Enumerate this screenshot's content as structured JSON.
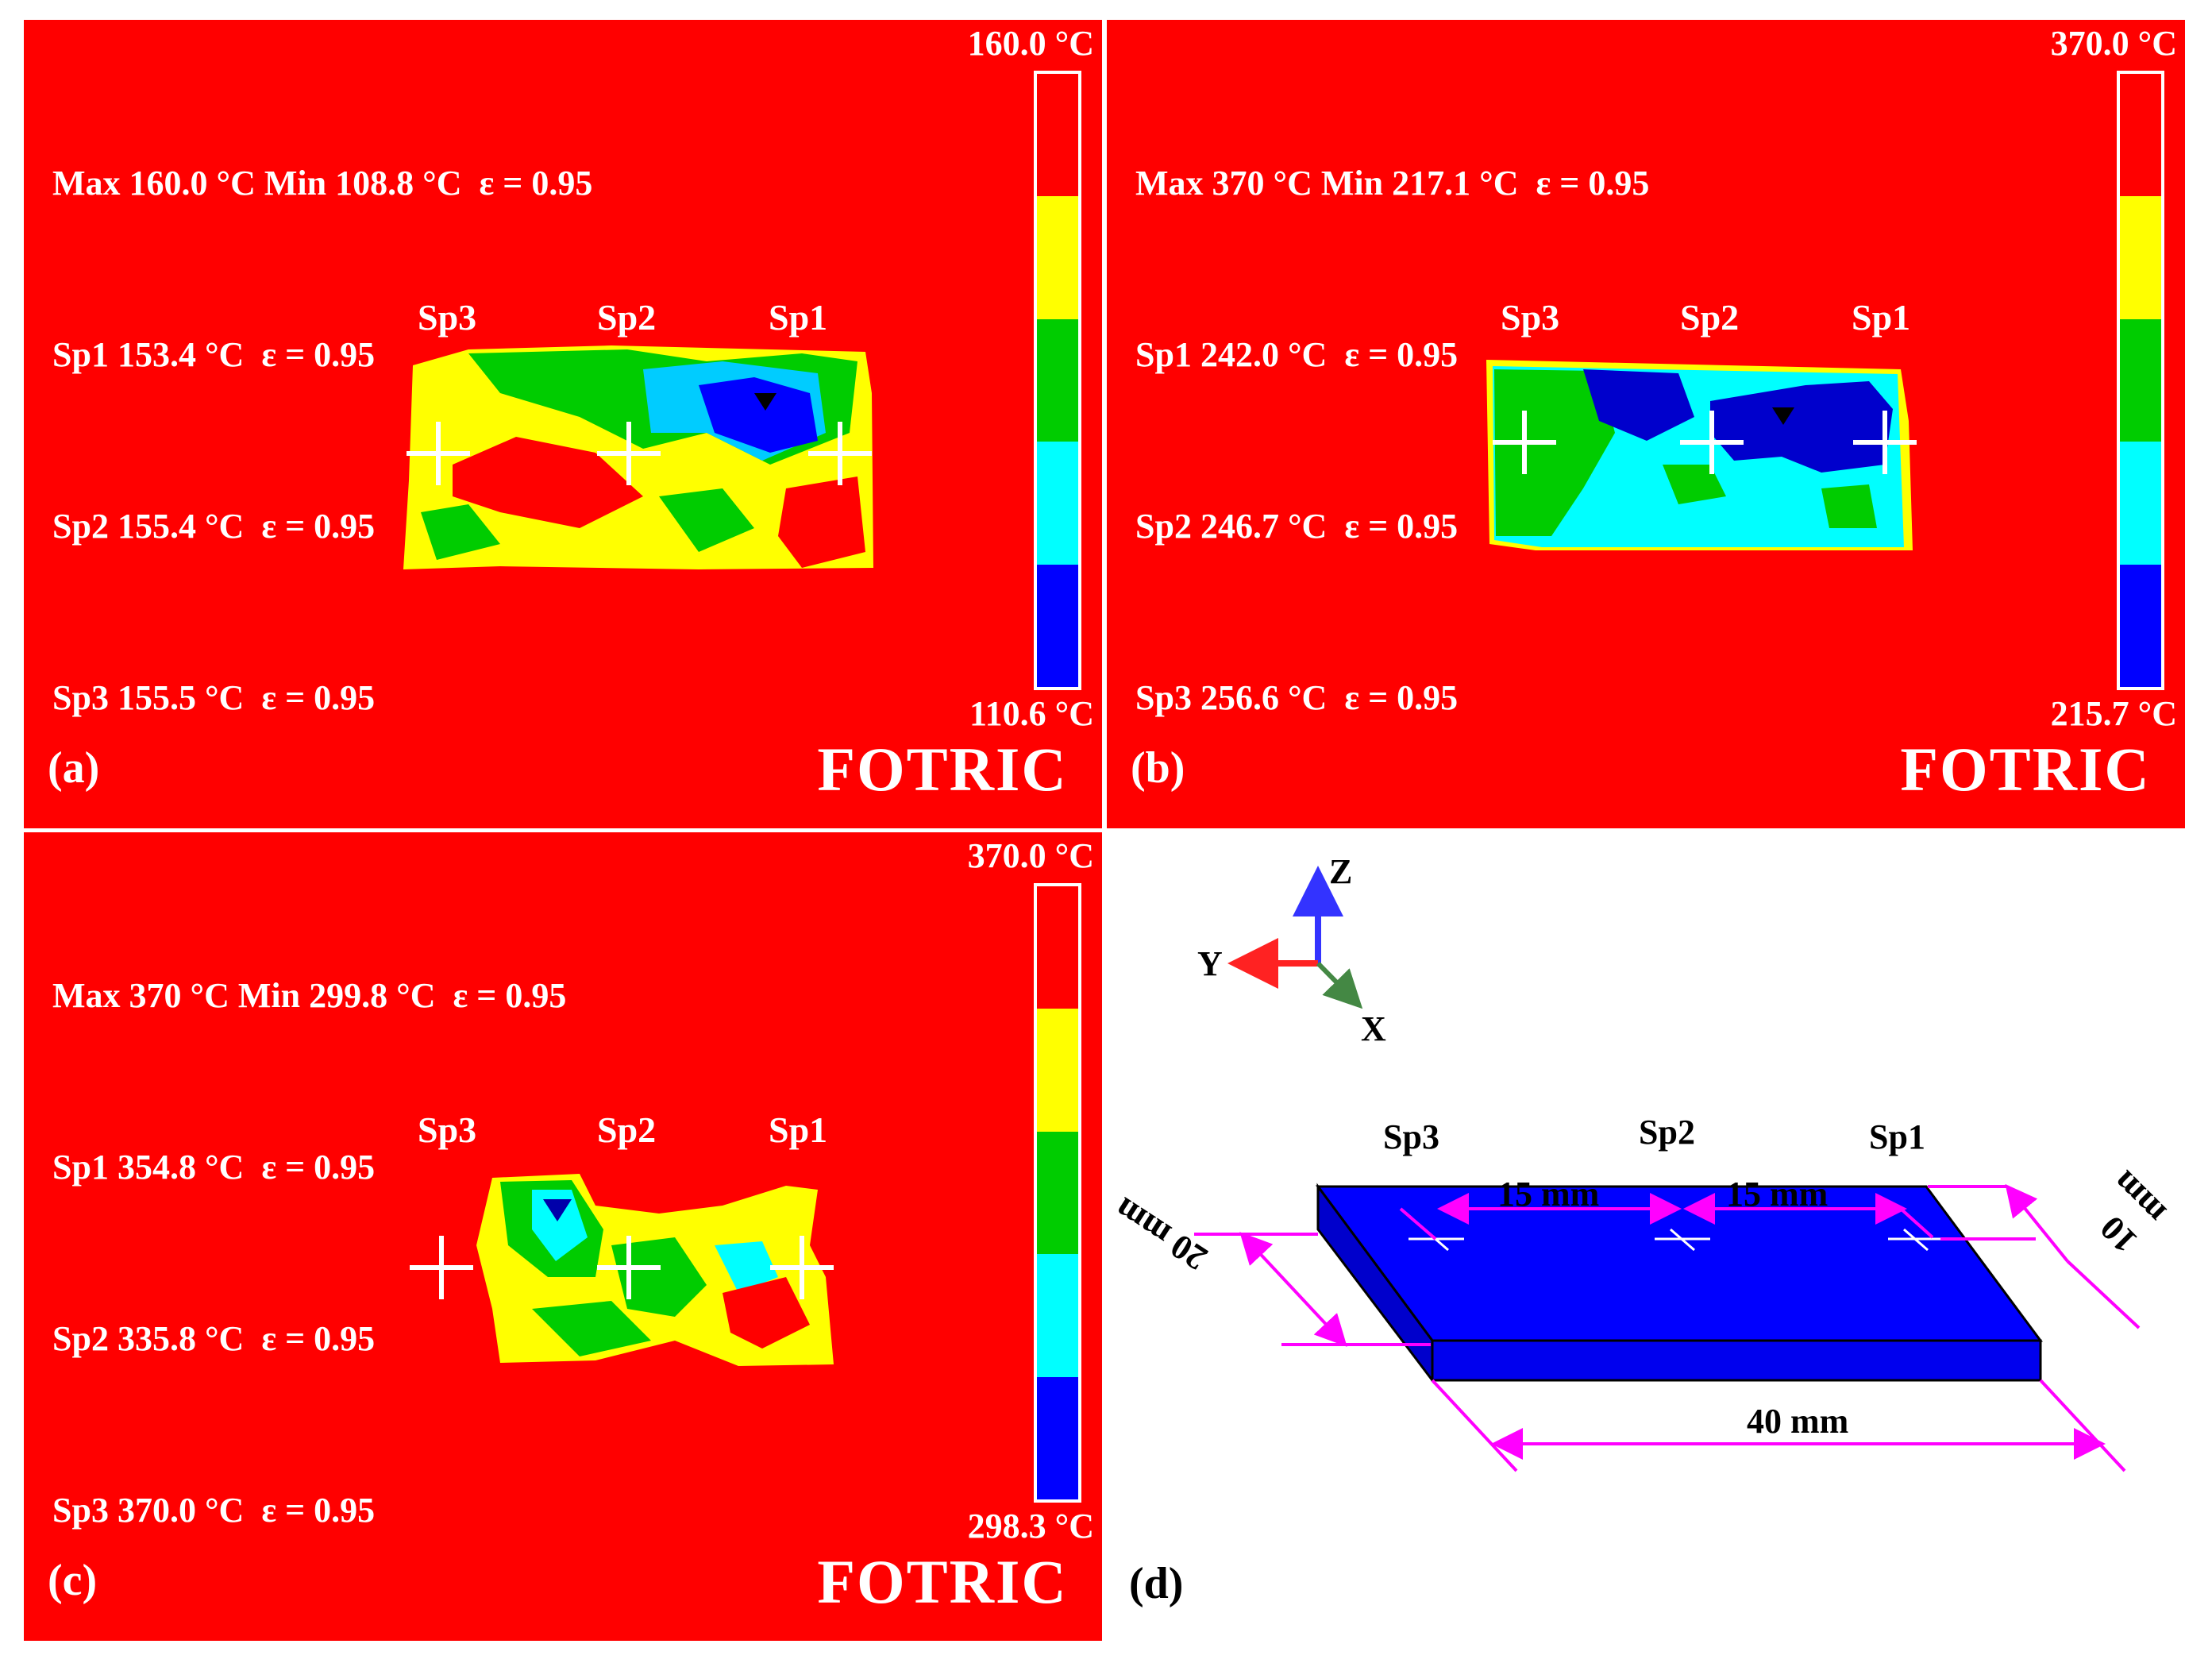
{
  "brand_text": "FOTRIC",
  "colors": {
    "background": "#ff0000",
    "scale": [
      "#ff0000",
      "#ffff00",
      "#00cc00",
      "#00ffff",
      "#0000ff"
    ],
    "dimension": "#ff00ff",
    "plate": "#0000ff",
    "axis_z": "#3333ff",
    "axis_y": "#ff2222",
    "axis_x": "#448844"
  },
  "panels": [
    {
      "letter": "(a)",
      "readouts": [
        "Max 160.0 °C Min 108.8 °C  ε = 0.95",
        "Sp1 153.4 °C  ε = 0.95",
        "Sp2 155.4 °C  ε = 0.95",
        "Sp3 155.5 °C  ε = 0.95"
      ],
      "scale_max": "160.0 °C",
      "scale_min": "110.6 °C",
      "spots": [
        "Sp3",
        "Sp2",
        "Sp1"
      ]
    },
    {
      "letter": "(b)",
      "readouts": [
        "Max 370 °C Min 217.1 °C  ε = 0.95",
        "Sp1 242.0 °C  ε = 0.95",
        "Sp2 246.7 °C  ε = 0.95",
        "Sp3 256.6 °C  ε = 0.95"
      ],
      "scale_max": "370.0 °C",
      "scale_min": "215.7 °C",
      "spots": [
        "Sp3",
        "Sp2",
        "Sp1"
      ]
    },
    {
      "letter": "(c)",
      "readouts": [
        "Max 370 °C Min 299.8 °C  ε = 0.95",
        "Sp1 354.8 °C  ε = 0.95",
        "Sp2 335.8 °C  ε = 0.95",
        "Sp3 370.0 °C  ε = 0.95"
      ],
      "scale_max": "370.0 °C",
      "scale_min": "298.3 °C",
      "spots": [
        "Sp3",
        "Sp2",
        "Sp1"
      ]
    }
  ],
  "diagram": {
    "letter": "(d)",
    "axes": {
      "z": "Z",
      "y": "Y",
      "x": "X"
    },
    "spots": [
      "Sp3",
      "Sp2",
      "Sp1"
    ],
    "dimensions": {
      "spacing_left": "15 mm",
      "spacing_right": "15 mm",
      "length": "40 mm",
      "width": "20 mm",
      "edge_offset": "10 mm"
    }
  }
}
